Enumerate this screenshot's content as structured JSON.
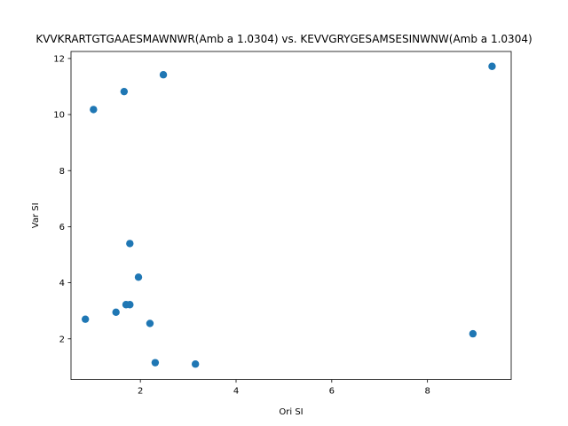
{
  "chart_data": {
    "type": "scatter",
    "title": "KVVKRARTGTGAAESMAWNWR(Amb a 1.0304) vs. KEVVGRYGESAMSESINWNW(Amb a 1.0304)",
    "xlabel": "Ori SI",
    "ylabel": "Var SI",
    "xlim": [
      0.55,
      9.75
    ],
    "ylim": [
      0.55,
      12.25
    ],
    "xticks": [
      2,
      4,
      6,
      8
    ],
    "yticks": [
      2,
      4,
      6,
      8,
      10,
      12
    ],
    "grid": false,
    "legend": "none",
    "point_color": "#1f77b4",
    "points": [
      {
        "x": 0.85,
        "y": 2.7
      },
      {
        "x": 1.02,
        "y": 10.18
      },
      {
        "x": 1.49,
        "y": 2.95
      },
      {
        "x": 1.66,
        "y": 10.82
      },
      {
        "x": 1.7,
        "y": 3.22
      },
      {
        "x": 1.78,
        "y": 3.22
      },
      {
        "x": 1.78,
        "y": 5.4
      },
      {
        "x": 1.96,
        "y": 4.2
      },
      {
        "x": 2.2,
        "y": 2.55
      },
      {
        "x": 2.31,
        "y": 1.15
      },
      {
        "x": 2.48,
        "y": 11.42
      },
      {
        "x": 3.15,
        "y": 1.1
      },
      {
        "x": 8.95,
        "y": 2.18
      },
      {
        "x": 9.35,
        "y": 11.72
      }
    ]
  }
}
